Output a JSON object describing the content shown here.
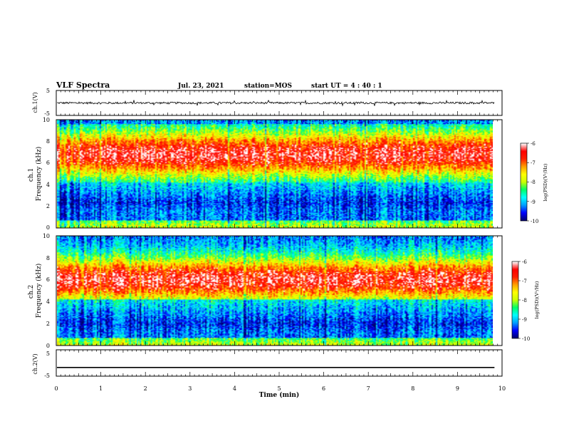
{
  "header": {
    "title": "VLF Spectra",
    "date": "Jul. 23, 2021",
    "station": "station=MOS",
    "start": "start UT =  4 : 40 : 1"
  },
  "chart_data": [
    {
      "type": "line",
      "name": "ch1-waveform",
      "ylabel": "ch.1(V)",
      "ylim": [
        -5,
        5
      ],
      "yticks": [
        "5",
        "-5"
      ],
      "level": 0
    },
    {
      "type": "heatmap",
      "name": "ch1-spectrogram",
      "ylabel": "ch.1\nFrequency (kHz)",
      "ylim": [
        0,
        10
      ],
      "yticks": [
        "0",
        "2",
        "4",
        "6",
        "8",
        "10"
      ],
      "xlim": [
        0,
        10
      ],
      "band_centers_khz": [
        6.8,
        2.3
      ],
      "colorbar": {
        "label": "log(PSD)(V²/Hz)",
        "ticks": [
          "-6",
          "-7",
          "-8",
          "-9",
          "-10"
        ],
        "range": [
          -10,
          -6
        ]
      }
    },
    {
      "type": "heatmap",
      "name": "ch2-spectrogram",
      "ylabel": "ch.2\nFrequency (kHz)",
      "ylim": [
        0,
        10
      ],
      "yticks": [
        "0",
        "2",
        "4",
        "6",
        "8",
        "10"
      ],
      "xlim": [
        0,
        10
      ],
      "band_centers_khz": [
        6.0,
        2.0
      ],
      "colorbar": {
        "label": "log(PSD)(V²/Hz)",
        "ticks": [
          "-6",
          "-7",
          "-8",
          "-9",
          "-10"
        ],
        "range": [
          -10,
          -6
        ]
      }
    },
    {
      "type": "line",
      "name": "ch2-waveform",
      "ylabel": "ch.2(V)",
      "ylim": [
        -5,
        5
      ],
      "yticks": [
        "5",
        "-5"
      ],
      "level": -1.7
    }
  ],
  "xaxis": {
    "label": "Time (min)",
    "ticks": [
      "0",
      "1",
      "2",
      "3",
      "4",
      "5",
      "6",
      "7",
      "8",
      "9",
      "10"
    ],
    "data_end": 9.83
  },
  "colors": {
    "axis": "#000000",
    "colormap": [
      "#000070",
      "#0000ff",
      "#00a0ff",
      "#00ffff",
      "#00ff66",
      "#ccff00",
      "#ffff00",
      "#ffa000",
      "#ff2000",
      "#ff0000",
      "#ffffff"
    ]
  }
}
